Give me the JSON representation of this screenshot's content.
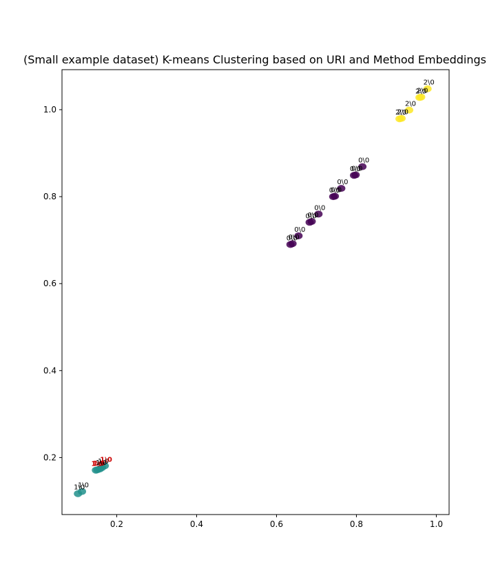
{
  "chart_data": {
    "type": "scatter",
    "title": "(Small example dataset) K-means Clustering based on URI and Method Embeddings",
    "xlabel": "",
    "ylabel": "",
    "xlim": [
      0.063,
      1.032
    ],
    "ylim": [
      0.069,
      1.092
    ],
    "x_ticks": [
      0.2,
      0.4,
      0.6,
      0.8,
      1.0
    ],
    "x_tick_labels": [
      "0.2",
      "0.4",
      "0.6",
      "0.8",
      "1.0"
    ],
    "y_ticks": [
      0.2,
      0.4,
      0.6,
      0.8,
      1.0
    ],
    "y_tick_labels": [
      "0.2",
      "0.4",
      "0.6",
      "0.8",
      "1.0"
    ],
    "grid": false,
    "legend": "none",
    "cluster_colors": {
      "0": "#440154",
      "1": "#21918c",
      "2": "#fde725"
    },
    "points": [
      {
        "x": 0.103,
        "y": 0.117,
        "cluster": 1,
        "label": "1\\0",
        "highlight": false
      },
      {
        "x": 0.113,
        "y": 0.122,
        "cluster": 1,
        "label": "1\\0",
        "highlight": false
      },
      {
        "x": 0.148,
        "y": 0.171,
        "cluster": 1,
        "label": "1\\0",
        "highlight": true
      },
      {
        "x": 0.152,
        "y": 0.172,
        "cluster": 1,
        "label": "1\\0",
        "highlight": true
      },
      {
        "x": 0.158,
        "y": 0.174,
        "cluster": 1,
        "label": "1\\0",
        "highlight": false
      },
      {
        "x": 0.163,
        "y": 0.177,
        "cluster": 1,
        "label": "1\\0",
        "highlight": false
      },
      {
        "x": 0.17,
        "y": 0.181,
        "cluster": 1,
        "label": "1\\0",
        "highlight": true
      },
      {
        "x": 0.635,
        "y": 0.69,
        "cluster": 0,
        "label": "0\\0",
        "highlight": false
      },
      {
        "x": 0.64,
        "y": 0.692,
        "cluster": 0,
        "label": "0\\0",
        "highlight": false
      },
      {
        "x": 0.655,
        "y": 0.71,
        "cluster": 0,
        "label": "0\\0",
        "highlight": false
      },
      {
        "x": 0.683,
        "y": 0.741,
        "cluster": 0,
        "label": "0\\0",
        "highlight": false
      },
      {
        "x": 0.688,
        "y": 0.743,
        "cluster": 0,
        "label": "0\\0",
        "highlight": false
      },
      {
        "x": 0.705,
        "y": 0.76,
        "cluster": 0,
        "label": "0\\0",
        "highlight": false
      },
      {
        "x": 0.742,
        "y": 0.8,
        "cluster": 0,
        "label": "0\\0",
        "highlight": false
      },
      {
        "x": 0.746,
        "y": 0.801,
        "cluster": 0,
        "label": "0\\0",
        "highlight": false
      },
      {
        "x": 0.762,
        "y": 0.819,
        "cluster": 0,
        "label": "0\\0",
        "highlight": false
      },
      {
        "x": 0.794,
        "y": 0.849,
        "cluster": 0,
        "label": "0\\0",
        "highlight": false
      },
      {
        "x": 0.798,
        "y": 0.85,
        "cluster": 0,
        "label": "0\\0",
        "highlight": false
      },
      {
        "x": 0.815,
        "y": 0.869,
        "cluster": 0,
        "label": "0\\0",
        "highlight": false
      },
      {
        "x": 0.908,
        "y": 0.979,
        "cluster": 2,
        "label": "2\\0",
        "highlight": false
      },
      {
        "x": 0.913,
        "y": 0.98,
        "cluster": 2,
        "label": "2\\0",
        "highlight": false
      },
      {
        "x": 0.932,
        "y": 0.999,
        "cluster": 2,
        "label": "2\\0",
        "highlight": false
      },
      {
        "x": 0.958,
        "y": 1.028,
        "cluster": 2,
        "label": "2\\0",
        "highlight": false
      },
      {
        "x": 0.962,
        "y": 1.029,
        "cluster": 2,
        "label": "2\\0",
        "highlight": false
      },
      {
        "x": 0.978,
        "y": 1.048,
        "cluster": 2,
        "label": "2\\0",
        "highlight": false
      }
    ]
  }
}
